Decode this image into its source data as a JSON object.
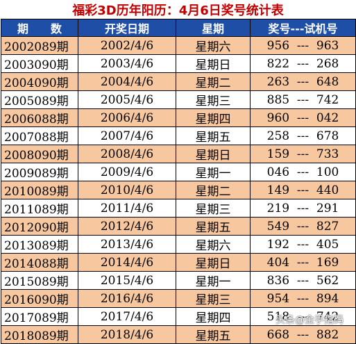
{
  "title": "福彩3D历年阳历：4月6日奖号统计表",
  "headers": {
    "issue": "期　　数",
    "date": "开奖日期",
    "weekday": "星期",
    "numbers": "奖号---试机号"
  },
  "rows": [
    {
      "issue": "2002089期",
      "date": "2002/4/6",
      "weekday": "星期六",
      "numbers": "956  ---  963"
    },
    {
      "issue": "2003090期",
      "date": "2003/4/6",
      "weekday": "星期日",
      "numbers": "822  ---  268"
    },
    {
      "issue": "2004090期",
      "date": "2004/4/6",
      "weekday": "星期二",
      "numbers": "263  ---  648"
    },
    {
      "issue": "2005089期",
      "date": "2005/4/6",
      "weekday": "星期三",
      "numbers": "885  ---  742"
    },
    {
      "issue": "2006088期",
      "date": "2006/4/6",
      "weekday": "星期四",
      "numbers": "960  ---  042"
    },
    {
      "issue": "2007088期",
      "date": "2007/4/6",
      "weekday": "星期五",
      "numbers": "258  ---  678"
    },
    {
      "issue": "2008090期",
      "date": "2008/4/6",
      "weekday": "星期日",
      "numbers": "159  ---  733"
    },
    {
      "issue": "2009089期",
      "date": "2009/4/6",
      "weekday": "星期一",
      "numbers": "046  ---  100"
    },
    {
      "issue": "2010089期",
      "date": "2010/4/6",
      "weekday": "星期二",
      "numbers": "149  ---  440"
    },
    {
      "issue": "2011089期",
      "date": "2011/4/6",
      "weekday": "星期三",
      "numbers": "219  ---  291"
    },
    {
      "issue": "2012090期",
      "date": "2012/4/6",
      "weekday": "星期五",
      "numbers": "549  ---  827"
    },
    {
      "issue": "2013089期",
      "date": "2013/4/6",
      "weekday": "星期六",
      "numbers": "192  ---  405"
    },
    {
      "issue": "2014088期",
      "date": "2014/4/6",
      "weekday": "星期日",
      "numbers": "404  ---  169"
    },
    {
      "issue": "2015089期",
      "date": "2015/4/6",
      "weekday": "星期一",
      "numbers": "836  ---  562"
    },
    {
      "issue": "2016090期",
      "date": "2016/4/6",
      "weekday": "星期三",
      "numbers": "954  ---  894"
    },
    {
      "issue": "2017089期",
      "date": "2017/4/6",
      "weekday": "星期四",
      "numbers": "518  ---  742"
    },
    {
      "issue": "2018089期",
      "date": "2018/4/6",
      "weekday": "星期五",
      "numbers": "668  ---  882"
    }
  ],
  "watermark": "头条@金手指码",
  "colors": {
    "title": "#c00000",
    "header_bg": "#1f4ea7",
    "header_text": "#ffffff",
    "row_alt_bg": "#f7c8a0",
    "row_bg": "#ffffff"
  }
}
